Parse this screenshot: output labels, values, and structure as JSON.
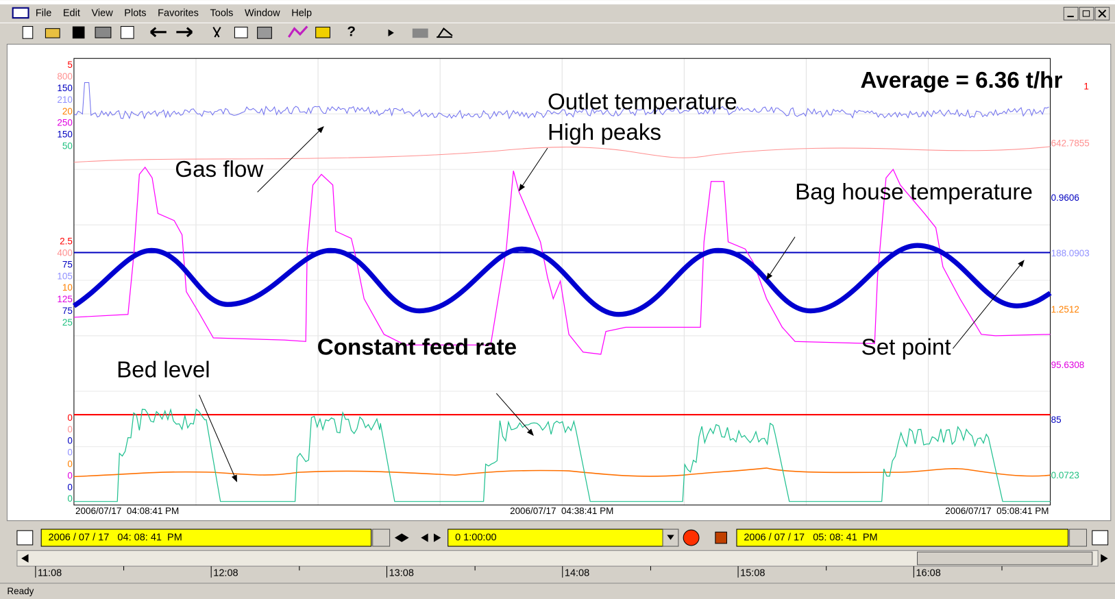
{
  "window": {
    "menu": [
      "File",
      "Edit",
      "View",
      "Plots",
      "Favorites",
      "Tools",
      "Window",
      "Help"
    ]
  },
  "plot": {
    "left_axis_groups": [
      [
        {
          "label": "5",
          "color": "#ff0000"
        },
        {
          "label": "800",
          "color": "#ff9090"
        },
        {
          "label": "150",
          "color": "#0000c0"
        },
        {
          "label": "210",
          "color": "#9090ff"
        },
        {
          "label": "20",
          "color": "#ff8000"
        },
        {
          "label": "250",
          "color": "#e000e0"
        },
        {
          "label": "150",
          "color": "#0000c0"
        },
        {
          "label": "50",
          "color": "#20c080"
        }
      ],
      [
        {
          "label": "2.5",
          "color": "#ff0000"
        },
        {
          "label": "400",
          "color": "#ff9090"
        },
        {
          "label": "75",
          "color": "#0000c0"
        },
        {
          "label": "105",
          "color": "#9090ff"
        },
        {
          "label": "10",
          "color": "#ff8000"
        },
        {
          "label": "125",
          "color": "#e000e0"
        },
        {
          "label": "75",
          "color": "#0000c0"
        },
        {
          "label": "25",
          "color": "#20c080"
        }
      ],
      [
        {
          "label": "0",
          "color": "#ff0000"
        },
        {
          "label": "0",
          "color": "#ff9090"
        },
        {
          "label": "0",
          "color": "#0000c0"
        },
        {
          "label": "0",
          "color": "#9090ff"
        },
        {
          "label": "0",
          "color": "#ff8000"
        },
        {
          "label": "0",
          "color": "#e000e0"
        },
        {
          "label": "0",
          "color": "#0000c0"
        },
        {
          "label": "0",
          "color": "#20c080"
        }
      ]
    ],
    "right_labels": [
      {
        "label": "1",
        "color": "#ff0000"
      },
      {
        "label": "642.7855",
        "color": "#ff9090"
      },
      {
        "label": "0.9606",
        "color": "#0000c0"
      },
      {
        "label": "188.0903",
        "color": "#9090ff"
      },
      {
        "label": "1.2512",
        "color": "#ff8000"
      },
      {
        "label": "95.6308",
        "color": "#e000e0"
      },
      {
        "label": "85",
        "color": "#0000c0"
      },
      {
        "label": "0.0723",
        "color": "#20c080"
      }
    ],
    "x_labels": [
      "2006/07/17  04:08:41 PM",
      "2006/07/17  04:38:41 PM",
      "2006/07/17  05:08:41 PM"
    ],
    "annotations": [
      {
        "text": "Average = 6.36 t/hr",
        "bold": true
      },
      {
        "text": "Outlet temperature",
        "bold": false
      },
      {
        "text": "High peaks",
        "bold": false
      },
      {
        "text": "Gas flow",
        "bold": false
      },
      {
        "text": "Bag house temperature",
        "bold": false
      },
      {
        "text": "Constant feed rate",
        "bold": true
      },
      {
        "text": "Set point",
        "bold": false
      },
      {
        "text": "Bed level",
        "bold": false
      }
    ]
  },
  "time_bar": {
    "start": "2006 / 07 / 17   04: 08: 41  PM",
    "span": "0 1:00:00",
    "end": "2006 / 07 / 17   05: 08: 41  PM"
  },
  "timeline": [
    "11:08",
    "12:08",
    "13:08",
    "14:08",
    "15:08",
    "16:08"
  ],
  "status": "Ready"
}
